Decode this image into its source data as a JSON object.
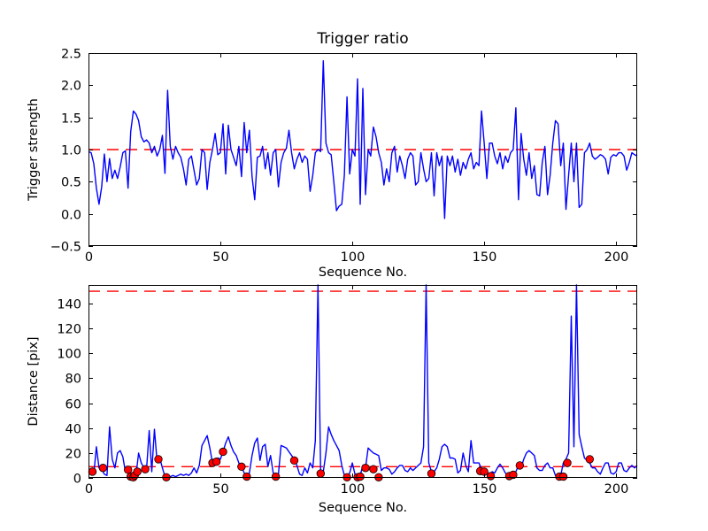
{
  "figure": {
    "background": "#ffffff",
    "frame_color": "#000000",
    "text_color": "#000000"
  },
  "chart_data": [
    {
      "type": "line",
      "title": "Trigger ratio",
      "xlabel": "Sequence No.",
      "ylabel": "Trigger strength",
      "xlim": [
        0,
        208
      ],
      "ylim": [
        -0.5,
        2.5
      ],
      "grid": false,
      "xticks": [
        0,
        50,
        100,
        150,
        200
      ],
      "xticklabels": [
        "0",
        "50",
        "100",
        "150",
        "200"
      ],
      "yticks": [
        -0.5,
        0.0,
        0.5,
        1.0,
        1.5,
        2.0,
        2.5
      ],
      "yticklabels": [
        "−0.5",
        "0.0",
        "0.5",
        "1.0",
        "1.5",
        "2.0",
        "2.5"
      ],
      "line_color": "#0000ff",
      "thresholds": [
        {
          "value": 1.0,
          "color": "#ff0000",
          "style": "dashed"
        }
      ],
      "x_start": 0,
      "x_step": 1,
      "values": [
        0.97,
        0.95,
        0.78,
        0.4,
        0.15,
        0.42,
        0.93,
        0.5,
        0.86,
        0.55,
        0.68,
        0.55,
        0.73,
        0.95,
        0.98,
        0.4,
        1.28,
        1.6,
        1.55,
        1.45,
        1.2,
        1.12,
        1.15,
        1.1,
        0.95,
        1.05,
        0.9,
        1.0,
        1.22,
        0.63,
        1.92,
        1.05,
        0.85,
        1.05,
        0.95,
        0.88,
        0.7,
        0.45,
        0.85,
        0.9,
        0.68,
        0.45,
        0.55,
        1.0,
        0.95,
        0.38,
        0.8,
        1.0,
        1.25,
        0.92,
        0.95,
        1.4,
        0.62,
        1.38,
        1.0,
        0.88,
        0.75,
        1.05,
        0.58,
        1.42,
        0.95,
        1.3,
        0.58,
        0.22,
        0.88,
        0.9,
        1.05,
        0.7,
        0.95,
        0.6,
        0.95,
        1.0,
        0.42,
        0.8,
        0.95,
        1.02,
        1.3,
        0.95,
        0.7,
        0.85,
        0.95,
        0.8,
        0.9,
        0.85,
        0.35,
        0.6,
        0.95,
        1.0,
        0.97,
        2.38,
        1.1,
        0.95,
        0.92,
        0.5,
        0.05,
        0.12,
        0.15,
        0.6,
        1.82,
        0.62,
        1.0,
        0.9,
        2.1,
        0.15,
        1.95,
        0.3,
        1.0,
        0.9,
        1.35,
        1.2,
        0.95,
        0.8,
        0.45,
        0.7,
        0.5,
        0.95,
        1.05,
        0.65,
        0.9,
        0.75,
        0.55,
        0.85,
        0.95,
        0.9,
        0.45,
        0.5,
        0.95,
        0.7,
        0.5,
        0.55,
        0.95,
        0.28,
        0.95,
        0.75,
        0.9,
        -0.07,
        0.9,
        0.75,
        0.9,
        0.65,
        0.85,
        0.6,
        0.8,
        0.7,
        0.85,
        0.95,
        0.7,
        0.8,
        0.75,
        1.6,
        1.1,
        0.55,
        1.1,
        1.1,
        0.9,
        0.78,
        0.95,
        0.7,
        0.9,
        0.8,
        0.95,
        1.0,
        1.65,
        0.22,
        1.25,
        0.85,
        0.6,
        0.95,
        0.55,
        0.75,
        0.3,
        0.28,
        0.8,
        1.05,
        0.3,
        0.6,
        1.1,
        1.45,
        1.4,
        0.75,
        1.1,
        0.07,
        0.6,
        1.1,
        0.5,
        1.1,
        0.1,
        0.15,
        0.95,
        1.0,
        1.1,
        0.9,
        0.85,
        0.88,
        0.92,
        0.9,
        0.85,
        0.62,
        0.88,
        0.92,
        0.9,
        0.95,
        0.95,
        0.9,
        0.68,
        0.8,
        0.95,
        0.92,
        0.9
      ]
    },
    {
      "type": "line_scatter",
      "title": "",
      "xlabel": "Sequence No.",
      "ylabel": "Distance [pix]",
      "xlim": [
        0,
        208
      ],
      "ylim": [
        0,
        155
      ],
      "grid": false,
      "xticks": [
        0,
        50,
        100,
        150,
        200
      ],
      "xticklabels": [
        "0",
        "50",
        "100",
        "150",
        "200"
      ],
      "yticks": [
        0,
        20,
        40,
        60,
        80,
        100,
        120,
        140
      ],
      "yticklabels": [
        "0",
        "20",
        "40",
        "60",
        "80",
        "100",
        "120",
        "140"
      ],
      "line_color": "#0000ff",
      "thresholds": [
        {
          "value": 150,
          "color": "#ff0000",
          "style": "dashed"
        },
        {
          "value": 9,
          "color": "#ff0000",
          "style": "dashed"
        }
      ],
      "x_start": 0,
      "x_step": 1,
      "values": [
        5,
        4,
        3,
        25,
        8,
        7,
        3,
        2,
        41,
        15,
        8,
        20,
        22,
        17,
        5,
        6,
        1,
        1,
        2,
        20,
        12,
        8,
        7,
        38,
        5,
        39,
        13,
        16,
        8,
        1,
        1,
        1,
        2,
        1,
        2,
        3,
        2,
        3,
        2,
        4,
        8,
        4,
        10,
        26,
        30,
        34,
        24,
        12,
        13,
        16,
        15,
        21,
        28,
        33,
        26,
        21,
        18,
        12,
        9,
        4,
        1,
        4,
        18,
        28,
        32,
        14,
        25,
        27,
        9,
        18,
        4,
        1,
        3,
        26,
        25,
        24,
        21,
        18,
        15,
        10,
        3,
        2,
        8,
        4,
        12,
        8,
        30,
        400,
        4,
        5,
        20,
        41,
        35,
        30,
        26,
        22,
        10,
        2,
        1,
        4,
        12,
        3,
        1,
        2,
        10,
        8,
        24,
        22,
        20,
        19,
        18,
        6,
        8,
        8,
        7,
        3,
        5,
        8,
        10,
        10,
        6,
        5,
        8,
        6,
        8,
        10,
        12,
        25,
        400,
        12,
        5,
        5,
        8,
        15,
        25,
        27,
        25,
        16,
        16,
        15,
        4,
        6,
        20,
        10,
        5,
        30,
        12,
        12,
        12,
        7,
        6,
        5,
        2,
        5,
        4,
        8,
        11,
        8,
        4,
        2,
        2,
        3,
        5,
        10,
        8,
        15,
        20,
        22,
        20,
        18,
        8,
        6,
        6,
        10,
        12,
        8,
        8,
        2,
        1,
        2,
        12,
        15,
        20,
        130,
        25,
        400,
        35,
        25,
        16,
        14,
        12,
        8,
        8,
        5,
        3,
        8,
        12,
        12,
        4,
        3,
        5,
        12,
        12,
        6,
        5,
        8,
        10,
        8,
        10
      ],
      "scatter": {
        "marker": "circle",
        "color": "#ff0000",
        "edge_color": "#000000",
        "points": [
          [
            1.5,
            5
          ],
          [
            5.5,
            8
          ],
          [
            15,
            6.5
          ],
          [
            16,
            1
          ],
          [
            17,
            0.5
          ],
          [
            17.5,
            2
          ],
          [
            18.5,
            5
          ],
          [
            21.5,
            7
          ],
          [
            26.5,
            15
          ],
          [
            29.5,
            0.5
          ],
          [
            47,
            12
          ],
          [
            48.5,
            13
          ],
          [
            51,
            21
          ],
          [
            58,
            9
          ],
          [
            60,
            1
          ],
          [
            71,
            1
          ],
          [
            78,
            14
          ],
          [
            88,
            3.5
          ],
          [
            98,
            0.5
          ],
          [
            102,
            0.5
          ],
          [
            103,
            1
          ],
          [
            105,
            8
          ],
          [
            108,
            7
          ],
          [
            110,
            0.5
          ],
          [
            130,
            3.5
          ],
          [
            148.5,
            5.5
          ],
          [
            150,
            5
          ],
          [
            152.5,
            1.5
          ],
          [
            159.5,
            1.5
          ],
          [
            161,
            2.5
          ],
          [
            163.5,
            10
          ],
          [
            178.5,
            1
          ],
          [
            180,
            1
          ],
          [
            181.5,
            12
          ],
          [
            190,
            15
          ]
        ]
      }
    }
  ]
}
